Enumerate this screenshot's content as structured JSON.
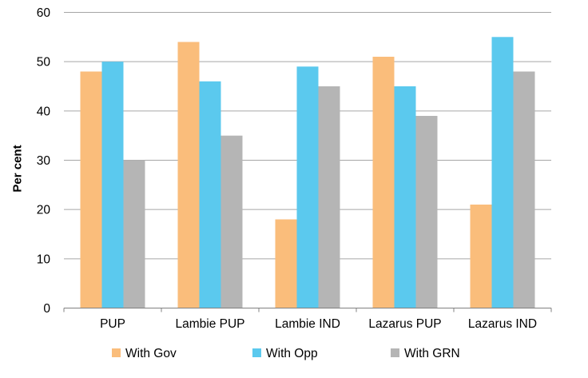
{
  "chart_data": {
    "type": "bar",
    "title": "",
    "xlabel": "",
    "ylabel": "Per cent",
    "categories": [
      "PUP",
      "Lambie PUP",
      "Lambie IND",
      "Lazarus PUP",
      "Lazarus IND"
    ],
    "series": [
      {
        "name": "With Gov",
        "color": "#FABD7B",
        "values": [
          48,
          54,
          18,
          51,
          21
        ]
      },
      {
        "name": "With Opp",
        "color": "#5BC9EE",
        "values": [
          50,
          46,
          49,
          45,
          55
        ]
      },
      {
        "name": "With GRN",
        "color": "#B5B5B5",
        "values": [
          30,
          35,
          45,
          39,
          48
        ]
      }
    ],
    "ylim": [
      0,
      60
    ],
    "yticks": [
      0,
      10,
      20,
      30,
      40,
      50,
      60
    ],
    "grid": true,
    "legend_position": "bottom",
    "gridline_color": "#A6A6A6",
    "axis_color": "#808080",
    "text_color": "#000000",
    "background_color": "#FFFFFF"
  }
}
